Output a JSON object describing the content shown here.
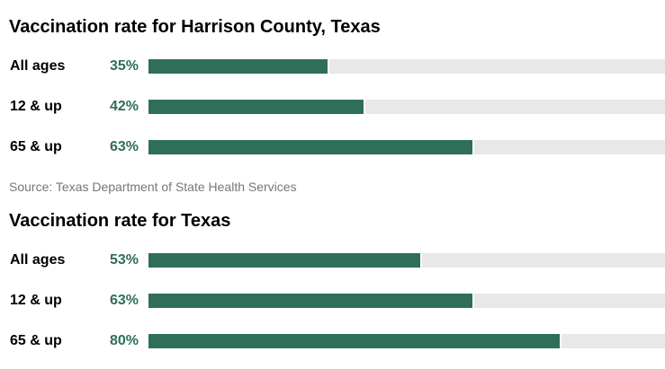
{
  "chart_data": [
    {
      "type": "bar",
      "orientation": "horizontal",
      "title": "Vaccination rate for Harrison County, Texas",
      "categories": [
        "All ages",
        "12 & up",
        "65 & up"
      ],
      "values": [
        35,
        42,
        63
      ],
      "value_labels": [
        "35%",
        "42%",
        "63%"
      ],
      "xlim": [
        0,
        100
      ],
      "bar_color": "#2f6e5b",
      "track_color": "#e8e8e8",
      "source": "Source: Texas Department of State Health Services"
    },
    {
      "type": "bar",
      "orientation": "horizontal",
      "title": "Vaccination rate for Texas",
      "categories": [
        "All ages",
        "12 & up",
        "65 & up"
      ],
      "values": [
        53,
        63,
        80
      ],
      "value_labels": [
        "53%",
        "63%",
        "80%"
      ],
      "xlim": [
        0,
        100
      ],
      "bar_color": "#2f6e5b",
      "track_color": "#e8e8e8"
    }
  ]
}
